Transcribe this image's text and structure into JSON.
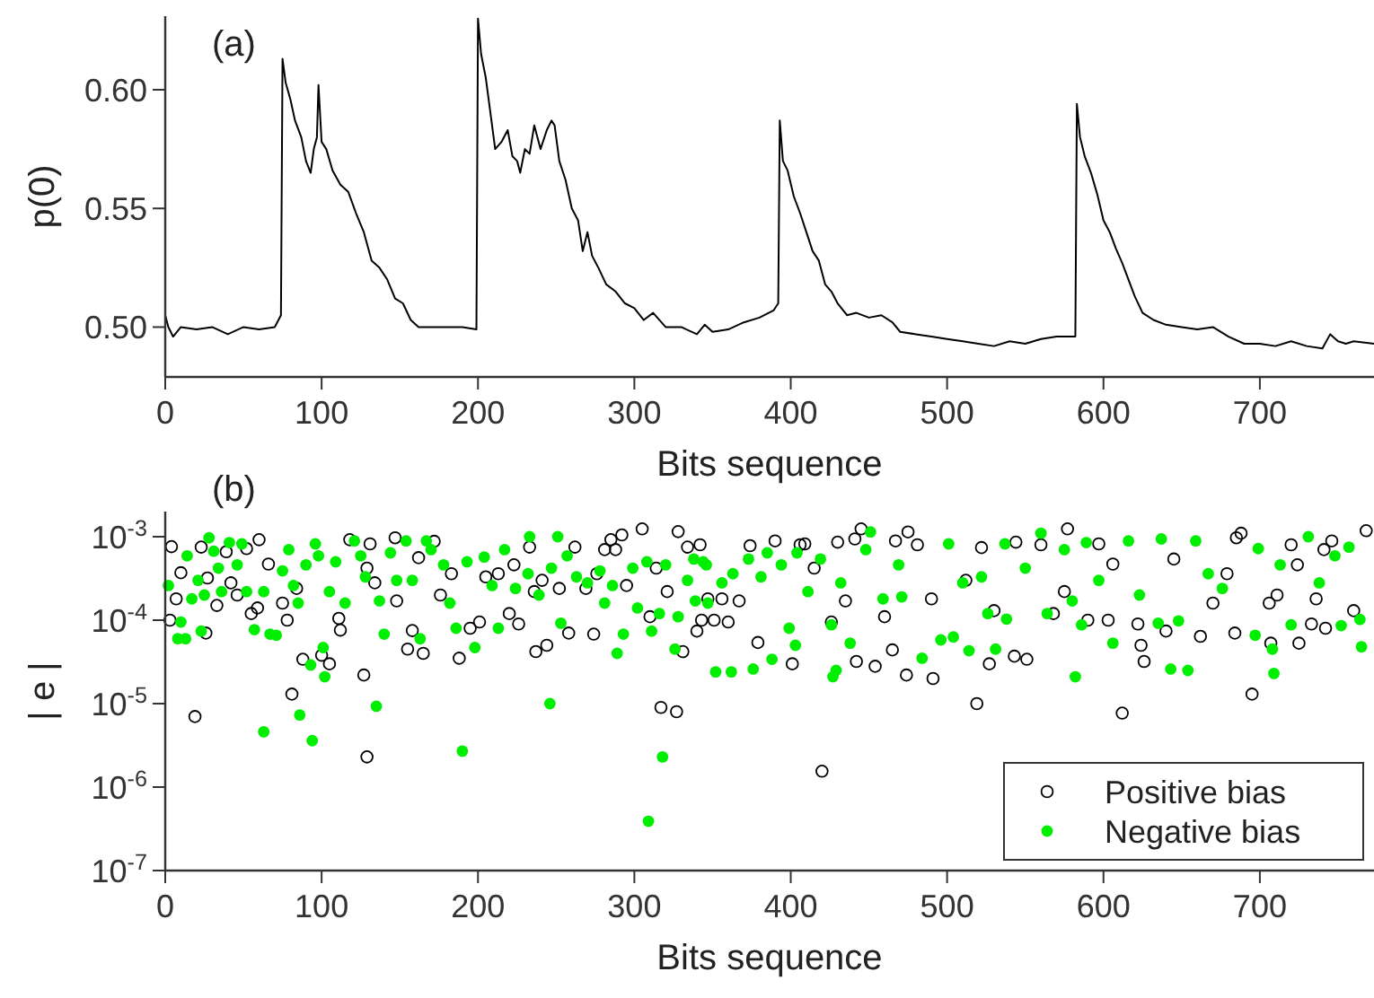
{
  "chart_data": [
    {
      "type": "line",
      "xlabel": "Bits sequence",
      "ylabel": "p(0)",
      "annotations": [
        "(a)"
      ],
      "xlim": [
        0,
        773
      ],
      "ylim": [
        0.479,
        0.631
      ],
      "xticks": [
        0,
        100,
        200,
        300,
        400,
        500,
        600,
        700
      ],
      "yticks": [
        {
          "value": 0.5,
          "label": "0.50"
        },
        {
          "value": 0.55,
          "label": "0.55"
        },
        {
          "value": 0.6,
          "label": "0.60"
        }
      ],
      "grid": false,
      "legend": false,
      "marker": "none",
      "line_style": "solid",
      "series": [
        {
          "color": "#000000",
          "x": [
            0,
            2,
            5,
            10,
            20,
            30,
            40,
            50,
            60,
            70,
            74,
            75,
            77,
            80,
            83,
            87,
            90,
            93,
            95,
            97,
            98,
            100,
            103,
            107,
            112,
            117,
            122,
            127,
            132,
            137,
            142,
            147,
            152,
            157,
            162,
            170,
            180,
            190,
            199,
            200,
            202,
            205,
            208,
            211,
            215,
            219,
            222,
            225,
            227,
            230,
            233,
            236,
            240,
            244,
            247,
            249,
            252,
            256,
            260,
            264,
            267,
            270,
            273,
            277,
            282,
            288,
            294,
            300,
            306,
            312,
            320,
            330,
            340,
            345,
            350,
            360,
            370,
            380,
            389,
            392,
            393,
            395,
            398,
            402,
            406,
            410,
            414,
            418,
            422,
            426,
            430,
            436,
            442,
            450,
            458,
            465,
            470,
            480,
            490,
            500,
            510,
            520,
            530,
            540,
            550,
            560,
            570,
            582,
            583,
            585,
            588,
            592,
            596,
            600,
            604,
            608,
            612,
            616,
            620,
            625,
            632,
            640,
            650,
            660,
            670,
            680,
            690,
            700,
            710,
            720,
            730,
            740,
            745,
            750,
            755,
            760,
            773
          ],
          "values": [
            0.505,
            0.5,
            0.496,
            0.5,
            0.499,
            0.5,
            0.497,
            0.5,
            0.499,
            0.5,
            0.505,
            0.613,
            0.603,
            0.596,
            0.587,
            0.58,
            0.57,
            0.565,
            0.575,
            0.58,
            0.602,
            0.578,
            0.575,
            0.566,
            0.56,
            0.557,
            0.548,
            0.54,
            0.528,
            0.525,
            0.52,
            0.512,
            0.51,
            0.503,
            0.5,
            0.5,
            0.5,
            0.5,
            0.499,
            0.63,
            0.615,
            0.605,
            0.59,
            0.575,
            0.578,
            0.583,
            0.572,
            0.57,
            0.565,
            0.575,
            0.573,
            0.585,
            0.575,
            0.583,
            0.587,
            0.585,
            0.57,
            0.562,
            0.55,
            0.545,
            0.532,
            0.54,
            0.53,
            0.525,
            0.518,
            0.515,
            0.51,
            0.508,
            0.503,
            0.506,
            0.5,
            0.5,
            0.497,
            0.501,
            0.498,
            0.499,
            0.502,
            0.504,
            0.507,
            0.51,
            0.587,
            0.57,
            0.566,
            0.555,
            0.548,
            0.54,
            0.532,
            0.528,
            0.518,
            0.515,
            0.51,
            0.505,
            0.506,
            0.504,
            0.505,
            0.502,
            0.498,
            0.497,
            0.496,
            0.495,
            0.494,
            0.493,
            0.492,
            0.494,
            0.493,
            0.495,
            0.496,
            0.496,
            0.594,
            0.58,
            0.572,
            0.565,
            0.556,
            0.545,
            0.54,
            0.533,
            0.527,
            0.52,
            0.513,
            0.506,
            0.503,
            0.501,
            0.5,
            0.499,
            0.5,
            0.496,
            0.493,
            0.493,
            0.492,
            0.494,
            0.492,
            0.491,
            0.497,
            0.494,
            0.493,
            0.494,
            0.493
          ]
        }
      ]
    },
    {
      "type": "scatter",
      "xlabel": "Bits sequence",
      "ylabel": "| e |",
      "annotations": [
        "(b)"
      ],
      "log": "y",
      "xlim": [
        0,
        773
      ],
      "ylim": [
        1e-07,
        0.002
      ],
      "xticks": [
        0,
        100,
        200,
        300,
        400,
        500,
        600,
        700
      ],
      "yticks": [
        {
          "value": 1e-07,
          "label": "10$^{-7}$"
        },
        {
          "value": 1e-06,
          "label": "10$^{-6}$"
        },
        {
          "value": 1e-05,
          "label": "10$^{-5}$"
        },
        {
          "value": 0.0001,
          "label": "10$^{-4}$"
        },
        {
          "value": 0.001,
          "label": "10$^{-3}$"
        }
      ],
      "grid": false,
      "legend": "bottom right",
      "marker": "circle",
      "series": [
        {
          "name": "Positive bias",
          "color": "#000000",
          "x": [
            19,
            129,
            81,
            88,
            100,
            105,
            127,
            317,
            327,
            188,
            155,
            420,
            519,
            612,
            695,
            491,
            474,
            454,
            442,
            465,
            543,
            551,
            527,
            401,
            626,
            624,
            379,
            662,
            684,
            4,
            3,
            7,
            10,
            23,
            26,
            27,
            33,
            39,
            42,
            46,
            52,
            55,
            60,
            59,
            66,
            75,
            78,
            84,
            111,
            112,
            118,
            129,
            131,
            134,
            147,
            148,
            158,
            162,
            165,
            172,
            176,
            183,
            195,
            201,
            205,
            213,
            220,
            223,
            226,
            233,
            236,
            237,
            241,
            244,
            252,
            258,
            262,
            269,
            274,
            276,
            281,
            285,
            288,
            292,
            295,
            305,
            310,
            314,
            321,
            328,
            331,
            334,
            340,
            343,
            347,
            342,
            351,
            356,
            360,
            367,
            374,
            390,
            406,
            409,
            415,
            426,
            430,
            435,
            441,
            445,
            460,
            467,
            475,
            481,
            490,
            512,
            522,
            530,
            544,
            560,
            568,
            575,
            577,
            590,
            597,
            603,
            606,
            622,
            640,
            645,
            670,
            679,
            685,
            688,
            706,
            707,
            711,
            720,
            724,
            725,
            733,
            736,
            741,
            742,
            746,
            760,
            768
          ],
          "values": [
            7e-06,
            2.3e-06,
            1.3e-05,
            3.4e-05,
            3.8e-05,
            3e-05,
            2.2e-05,
            9e-06,
            8e-06,
            3.5e-05,
            4.5e-05,
            1.55e-06,
            1e-05,
            7.7e-06,
            1.3e-05,
            2e-05,
            2.2e-05,
            2.8e-05,
            3.2e-05,
            4.4e-05,
            3.7e-05,
            3.4e-05,
            3e-05,
            3e-05,
            3.2e-05,
            5e-05,
            5.4e-05,
            6.4e-05,
            7e-05,
            0.00076,
            0.0001,
            0.00018,
            0.00037,
            0.00075,
            7e-05,
            0.00032,
            0.00015,
            0.00066,
            0.00028,
            0.0002,
            0.00072,
            0.00012,
            0.00092,
            0.00014,
            0.00047,
            0.00016,
            0.0001,
            0.00024,
            0.000105,
            7.6e-05,
            0.00092,
            0.00042,
            0.00082,
            0.00028,
            0.00097,
            0.00017,
            7.5e-05,
            0.00056,
            4e-05,
            0.00088,
            0.0002,
            0.00036,
            8e-05,
            9.5e-05,
            0.00033,
            0.00036,
            0.00012,
            0.00046,
            9e-05,
            0.00075,
            0.00022,
            4.2e-05,
            0.0003,
            5e-05,
            0.00024,
            7e-05,
            0.00075,
            0.00024,
            6.8e-05,
            0.00036,
            0.0007,
            0.00092,
            0.0007,
            0.00105,
            0.00026,
            0.00124,
            0.00011,
            0.00042,
            0.00022,
            0.00115,
            4.2e-05,
            0.00075,
            7.4e-05,
            0.0001,
            0.00018,
            0.0008,
            0.0001,
            0.00018,
            9.5e-05,
            0.00017,
            0.00078,
            0.00089,
            0.0008,
            0.00082,
            0.00042,
            9.5e-05,
            0.00086,
            0.00017,
            0.00094,
            0.00124,
            0.00011,
            0.00089,
            0.00114,
            0.0008,
            0.00018,
            0.0003,
            0.00074,
            0.00013,
            0.00086,
            0.0008,
            0.00012,
            0.00022,
            0.00124,
            0.0001,
            0.00082,
            0.0001,
            0.00047,
            9e-05,
            7.4e-05,
            0.00054,
            0.00016,
            0.00036,
            0.00097,
            0.0011,
            0.00016,
            5.3e-05,
            0.0002,
            0.0008,
            0.00046,
            5.3e-05,
            9e-05,
            0.00018,
            0.0007,
            8e-05,
            0.00089,
            0.00013,
            0.00118
          ]
        },
        {
          "name": "Negative bias",
          "color": "#00ee00",
          "x": [
            63,
            86,
            94,
            135,
            190,
            246,
            309,
            318,
            289,
            198,
            102,
            101,
            93,
            352,
            362,
            376,
            388,
            427,
            429,
            582,
            643,
            654,
            709,
            403,
            484,
            399,
            2,
            8,
            10,
            13,
            14,
            17,
            21,
            23,
            25,
            28,
            31,
            34,
            36,
            41,
            46,
            49,
            52,
            57,
            63,
            67,
            71,
            75,
            79,
            82,
            85,
            90,
            96,
            98,
            105,
            109,
            115,
            121,
            125,
            128,
            137,
            140,
            144,
            148,
            154,
            158,
            163,
            167,
            170,
            178,
            182,
            186,
            193,
            204,
            209,
            213,
            217,
            224,
            232,
            233,
            239,
            247,
            251,
            253,
            257,
            263,
            270,
            278,
            281,
            286,
            293,
            299,
            302,
            308,
            311,
            316,
            320,
            326,
            328,
            334,
            338,
            339,
            346,
            344,
            347,
            356,
            363,
            373,
            381,
            385,
            394,
            404,
            411,
            419,
            426,
            432,
            438,
            448,
            451,
            459,
            469,
            471,
            496,
            504,
            501,
            510,
            514,
            522,
            526,
            531,
            537,
            538,
            550,
            560,
            564,
            575,
            580,
            586,
            589,
            597,
            606,
            616,
            623,
            635,
            637,
            648,
            659,
            667,
            676,
            697,
            699,
            708,
            713,
            720,
            731,
            738,
            748,
            752,
            757,
            764,
            765
          ],
          "values": [
            4.6e-06,
            7.3e-06,
            3.6e-06,
            9.3e-06,
            2.7e-06,
            1e-05,
            3.9e-07,
            2.3e-06,
            4e-05,
            4.7e-05,
            2.1e-05,
            4.7e-05,
            2.9e-05,
            2.4e-05,
            2.4e-05,
            2.6e-05,
            3.4e-05,
            2.1e-05,
            2.5e-05,
            2.1e-05,
            2.6e-05,
            2.5e-05,
            2.3e-05,
            5e-05,
            3.5e-05,
            8e-05,
            0.00026,
            6e-05,
            9.5e-05,
            6e-05,
            0.00059,
            0.00018,
            0.0003,
            7.4e-05,
            0.0002,
            0.00097,
            0.00067,
            0.00042,
            0.00022,
            0.00085,
            0.00046,
            0.00082,
            0.00022,
            7.7e-05,
            0.00022,
            6.8e-05,
            6.6e-05,
            0.00039,
            0.0007,
            0.00026,
            0.00016,
            0.00046,
            0.00082,
            0.00059,
            0.00022,
            0.0005,
            0.00016,
            0.00089,
            0.00059,
            0.00033,
            0.00017,
            6.8e-05,
            0.00064,
            0.0003,
            0.00089,
            0.0003,
            6e-05,
            0.00089,
            0.0007,
            0.00046,
            0.00016,
            8e-05,
            0.0005,
            0.00057,
            0.00026,
            8e-05,
            0.0007,
            0.00024,
            0.00036,
            0.001,
            0.0002,
            0.00042,
            0.001,
            9.2e-05,
            0.00059,
            0.00033,
            0.00028,
            0.00039,
            0.00016,
            0.00026,
            6.8e-05,
            0.00042,
            0.00014,
            0.0005,
            7.4e-05,
            0.00012,
            0.00046,
            4.5e-05,
            0.00011,
            0.0003,
            0.00054,
            0.00017,
            0.00046,
            0.0005,
            0.00016,
            0.00028,
            0.00036,
            0.00054,
            0.00033,
            0.00064,
            0.00046,
            0.00064,
            0.00022,
            0.00054,
            8.8e-05,
            0.00028,
            5.3e-05,
            0.0007,
            0.00114,
            0.00018,
            0.00046,
            0.00019,
            5.8e-05,
            6.3e-05,
            0.00082,
            0.00028,
            4.3e-05,
            0.00033,
            0.00012,
            4.5e-05,
            0.00082,
            0.000103,
            0.00042,
            0.0011,
            0.00012,
            0.0007,
            0.00017,
            8.8e-05,
            0.00085,
            0.0003,
            5.3e-05,
            0.00089,
            0.0002,
            9.2e-05,
            0.00094,
            9.8e-05,
            0.00089,
            0.00036,
            0.00024,
            6.6e-05,
            0.00072,
            4.5e-05,
            0.00046,
            8.8e-05,
            0.001,
            0.00028,
            0.00059,
            8.6e-05,
            0.00075,
            0.000102,
            4.8e-05
          ]
        }
      ]
    }
  ]
}
